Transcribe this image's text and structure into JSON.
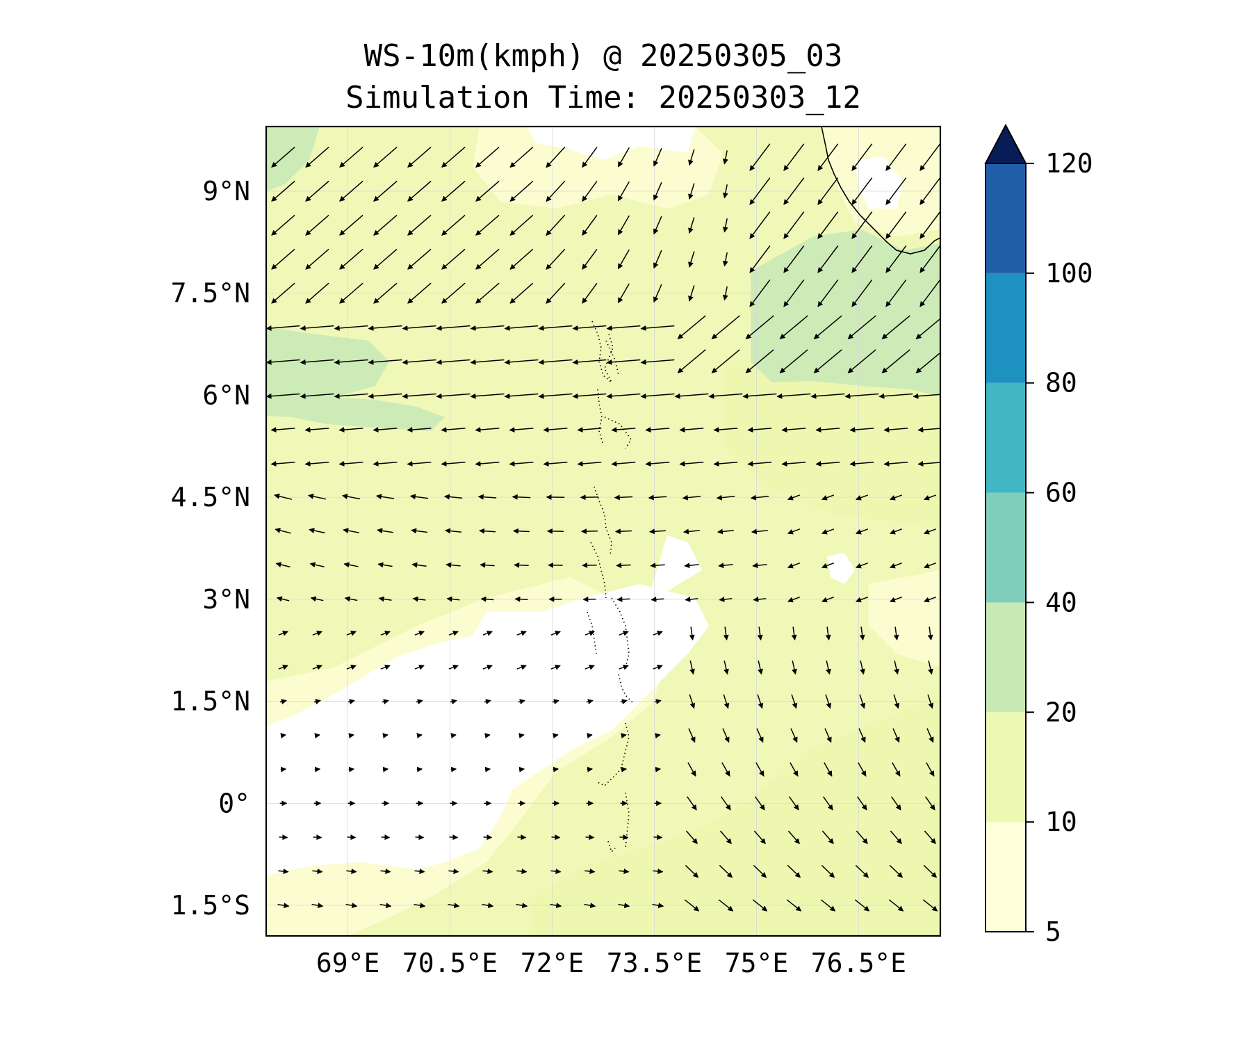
{
  "title": {
    "line1": "WS-10m(kmph) @ 20250305_03",
    "line2": "Simulation Time: 20250303_12"
  },
  "map": {
    "lon_range": [
      67.8,
      77.7
    ],
    "lat_range": [
      -1.95,
      9.95
    ],
    "lon_ticks": [
      {
        "value": 69.0,
        "label": "69°E"
      },
      {
        "value": 70.5,
        "label": "70.5°E"
      },
      {
        "value": 72.0,
        "label": "72°E"
      },
      {
        "value": 73.5,
        "label": "73.5°E"
      },
      {
        "value": 75.0,
        "label": "75°E"
      },
      {
        "value": 76.5,
        "label": "76.5°E"
      }
    ],
    "lat_ticks": [
      {
        "value": 9.0,
        "label": "9°N"
      },
      {
        "value": 7.5,
        "label": "7.5°N"
      },
      {
        "value": 6.0,
        "label": "6°N"
      },
      {
        "value": 4.5,
        "label": "4.5°N"
      },
      {
        "value": 3.0,
        "label": "3°N"
      },
      {
        "value": 1.5,
        "label": "1.5°N"
      },
      {
        "value": 0.0,
        "label": "0°"
      },
      {
        "value": -1.5,
        "label": "1.5°S"
      }
    ],
    "gridlines": true
  },
  "colorbar": {
    "levels": [
      "5",
      "10",
      "20",
      "40",
      "60",
      "80",
      "100",
      "120"
    ],
    "colors": [
      "#ffffd9",
      "#edf8b1",
      "#c7e9b4",
      "#7fcdbb",
      "#41b6c4",
      "#1d91c0",
      "#225ea8",
      "#0c2c84"
    ],
    "extend_color": "#081d58",
    "extend": "max"
  },
  "chart_data": {
    "type": "heatmap",
    "variable": "WS-10m(kmph)",
    "colorscale_levels": [
      5,
      10,
      20,
      40,
      60,
      80,
      100,
      120
    ],
    "wind_vectors": {
      "lon_step": 0.5,
      "lat_step": 0.5,
      "regions": [
        {
          "region": "northwest",
          "lon": [
            67.8,
            71.5
          ],
          "lat": [
            7.5,
            9.9
          ],
          "direction": "toward SW",
          "speed_kmph": "20-25"
        },
        {
          "region": "central belt",
          "lon": [
            67.8,
            77.7
          ],
          "lat": [
            5.0,
            7.2
          ],
          "direction": "toward W",
          "speed_kmph": "15-25"
        },
        {
          "region": "northeast",
          "lon": [
            74.5,
            77.7
          ],
          "lat": [
            6.0,
            8.5
          ],
          "direction": "toward SW",
          "speed_kmph": "20-25"
        },
        {
          "region": "south-central calm",
          "lon": [
            68.0,
            74.0
          ],
          "lat": [
            -1.0,
            2.5
          ],
          "direction": "variable",
          "speed_kmph": "<5"
        },
        {
          "region": "southeast",
          "lon": [
            74.0,
            77.7
          ],
          "lat": [
            -1.9,
            3.0
          ],
          "direction": "toward S/SE",
          "speed_kmph": "10-15"
        }
      ]
    }
  }
}
